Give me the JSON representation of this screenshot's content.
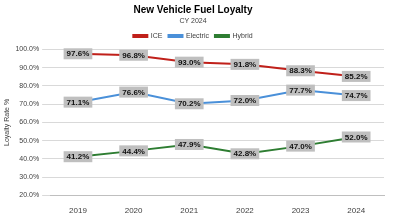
{
  "chart_data": {
    "type": "line",
    "title": "New Vehicle Fuel Loyalty",
    "subtitle": "CY 2024",
    "y_label": "Loyalty Rate %",
    "categories": [
      "2019",
      "2020",
      "2021",
      "2022",
      "2023",
      "2024"
    ],
    "series": [
      {
        "name": "ICE",
        "color": "#c0201a",
        "values": [
          97.6,
          96.8,
          93.0,
          91.8,
          88.3,
          85.2
        ],
        "value_labels": [
          "97.6%",
          "96.8%",
          "93.0%",
          "91.8%",
          "88.3%",
          "85.2%"
        ]
      },
      {
        "name": "Electric",
        "color": "#4a90d9",
        "values": [
          71.1,
          76.6,
          70.2,
          72.0,
          77.7,
          74.7
        ],
        "value_labels": [
          "71.1%",
          "76.6%",
          "70.2%",
          "72.0%",
          "77.7%",
          "74.7%"
        ]
      },
      {
        "name": "Hybrid",
        "color": "#2e7d32",
        "values": [
          41.2,
          44.4,
          47.9,
          42.8,
          47.0,
          52.0
        ],
        "value_labels": [
          "41.2%",
          "44.4%",
          "47.9%",
          "42.8%",
          "47.0%",
          "52.0%"
        ]
      }
    ],
    "ylim": [
      20,
      100
    ],
    "yticks": [
      {
        "value": 20,
        "label": "20.0%"
      },
      {
        "value": 30,
        "label": "30.0%"
      },
      {
        "value": 40,
        "label": "40.0%"
      },
      {
        "value": 50,
        "label": "50.0%"
      },
      {
        "value": 60,
        "label": "60.0%"
      },
      {
        "value": 70,
        "label": "70.0%"
      },
      {
        "value": 80,
        "label": "80.0%"
      },
      {
        "value": 90,
        "label": "90.0%"
      },
      {
        "value": 100,
        "label": "100.0%"
      }
    ],
    "grid": true,
    "legend": "top",
    "data_labels": true
  }
}
